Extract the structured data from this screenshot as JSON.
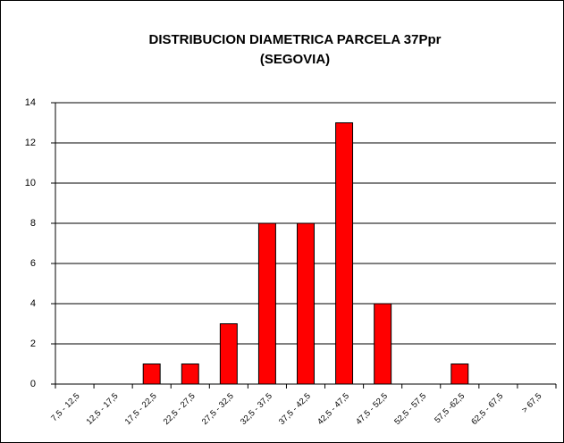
{
  "chart_data": {
    "type": "bar",
    "title": [
      "DISTRIBUCION DIAMETRICA PARCELA 37Ppr",
      "(SEGOVIA)"
    ],
    "categories": [
      "7,5 - 12,5",
      "12,5 - 17,5",
      "17,5 - 22,5",
      "22,5 - 27,5",
      "27,5 - 32,5",
      "32,5 - 37,5",
      "37,5 - 42,5",
      "42,5 - 47,5",
      "47,5 - 52,5",
      "52,5 - 57,5",
      "57,5 -62,5",
      "62,5 - 67,5",
      "> 67,5"
    ],
    "values": [
      0,
      0,
      1,
      1,
      3,
      8,
      8,
      13,
      4,
      0,
      1,
      0,
      0
    ],
    "color": "#ff0000",
    "ylim": [
      0,
      14
    ],
    "yticks": [
      0,
      2,
      4,
      6,
      8,
      10,
      12,
      14
    ],
    "grid": true
  }
}
